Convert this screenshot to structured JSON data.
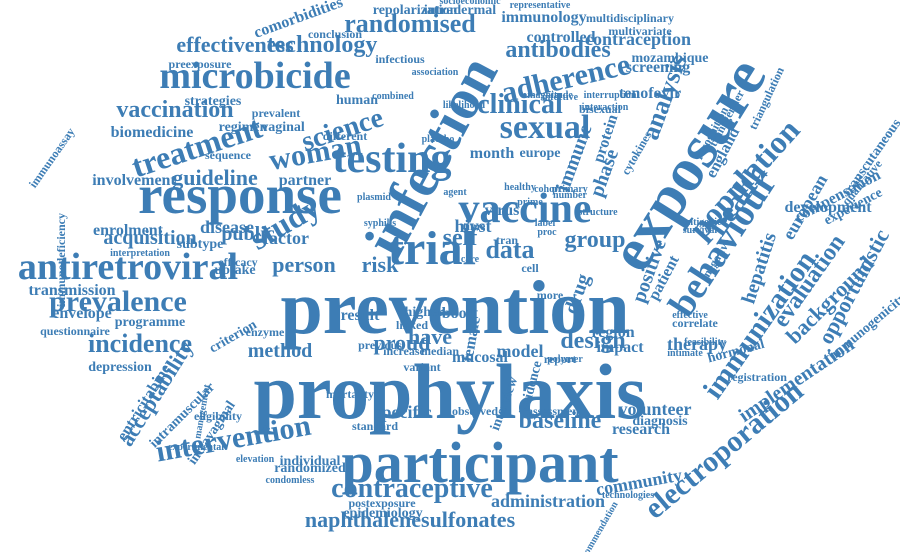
{
  "color": "#3d7db5",
  "words": [
    "prophylaxis",
    "prevention",
    "participant",
    "exposure",
    "infection",
    "response",
    "microbicide",
    "testing",
    "vaccine",
    "treatment",
    "woman",
    "science",
    "sexual",
    "behaviour",
    "population",
    "health",
    "trial",
    "antiretroviral",
    "prevalence",
    "intervention",
    "contraceptive",
    "immunization",
    "electroporation",
    "adherence",
    "randomised",
    "technology",
    "effectiveness",
    "antibodies",
    "clinical",
    "vaccination",
    "guideline",
    "study",
    "incidence",
    "acceptability",
    "implementation",
    "evaluation",
    "background",
    "opportunistic",
    "hepatitis",
    "naphthalenesulfonates",
    "administration",
    "community",
    "baseline",
    "volunteer",
    "specific",
    "proud",
    "have",
    "method",
    "design",
    "analysis",
    "immune",
    "phase",
    "drug",
    "data",
    "risk",
    "group",
    "self",
    "hivst",
    "virus",
    "person",
    "factor",
    "public",
    "disease",
    "acquisition",
    "enrolment",
    "involvement",
    "biomedicine",
    "strategies",
    "human",
    "partner",
    "month",
    "europe",
    "protein",
    "tenofovir",
    "screening",
    "contraception",
    "controlled",
    "immunology",
    "mozambique",
    "transmission",
    "envelope",
    "programme",
    "questionnaire",
    "depression",
    "entricitabine",
    "intravaginal",
    "intramuscular",
    "eligibility",
    "mortality",
    "individual",
    "randomized",
    "condomless",
    "postexposure",
    "epidemiology",
    "result",
    "boost",
    "female",
    "mucosal",
    "model",
    "region",
    "impact",
    "therapy",
    "diagnosis",
    "research",
    "hormonal",
    "registration",
    "positive",
    "patient",
    "transgender",
    "recognition",
    "england",
    "european",
    "development",
    "compensation",
    "experience",
    "immunogenicity",
    "transcutaneous",
    "comorbidities",
    "repolarization",
    "intradermal",
    "conclusion",
    "representative",
    "multidisciplinary",
    "multivariate",
    "preexposure",
    "infectious",
    "cytokines",
    "bisexual",
    "effective",
    "negative",
    "qualitative",
    "antigenic",
    "survival",
    "triangulation",
    "sequence",
    "regimen",
    "vaginal",
    "prevalent",
    "different",
    "immunoassay",
    "immunodeficiency",
    "interpretation",
    "subtype",
    "uptake",
    "criterion",
    "enzyme",
    "previous",
    "increase",
    "linked",
    "higher",
    "evidence",
    "interview",
    "standard",
    "observed",
    "assessment",
    "feasibility",
    "correlate",
    "intimate",
    "polymer",
    "cohort",
    "number",
    "primary",
    "prime",
    "healthy",
    "agent",
    "label",
    "cell",
    "time",
    "tran",
    "care",
    "plasmid",
    "syphilis",
    "efficacy",
    "socioeconomic",
    "management",
    "experimental",
    "elevation",
    "recommendation",
    "technologies",
    "structure",
    "magnitude",
    "interruption",
    "interaction",
    "infective",
    "likelihood",
    "placebo",
    "association",
    "combined",
    "median",
    "variant",
    "more",
    "report",
    "proc"
  ]
}
